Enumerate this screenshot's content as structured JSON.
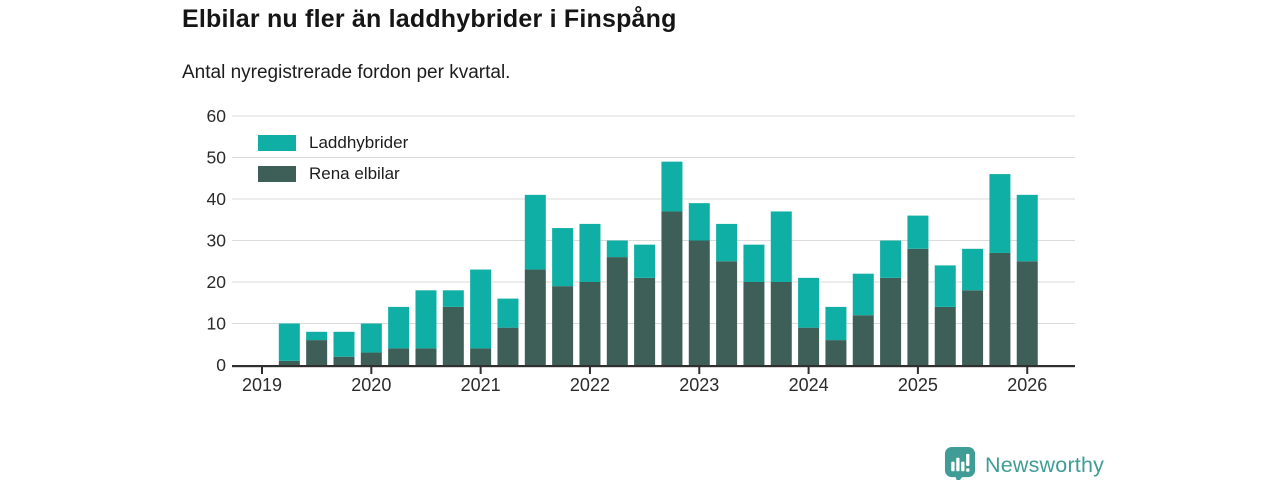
{
  "header": {
    "title": "Elbilar nu fler än laddhybrider i Finspång",
    "subtitle": "Antal nyregistrerade fordon per kvartal."
  },
  "legend": {
    "items": [
      {
        "label": "Laddhybrider",
        "color": "#0fafa5"
      },
      {
        "label": "Rena elbilar",
        "color": "#3e5f58"
      }
    ]
  },
  "footer": {
    "brand": "Newsworthy",
    "brand_color": "#3f9d96",
    "logo_icon": "newsworthy-chart-bubble-icon"
  },
  "chart_data": {
    "type": "bar",
    "stacked": true,
    "title": "Elbilar nu fler än laddhybrider i Finspång",
    "subtitle": "Antal nyregistrerade fordon per kvartal.",
    "categories": [
      "2019 Q2",
      "2019 Q3",
      "2019 Q4",
      "2020 Q1",
      "2020 Q2",
      "2020 Q3",
      "2020 Q4",
      "2021 Q1",
      "2021 Q2",
      "2021 Q3",
      "2021 Q4",
      "2022 Q1",
      "2022 Q2",
      "2022 Q3",
      "2022 Q4",
      "2023 Q1",
      "2023 Q2",
      "2023 Q3",
      "2023 Q4",
      "2024 Q1",
      "2024 Q2",
      "2024 Q3",
      "2024 Q4",
      "2025 Q1",
      "2025 Q2",
      "2025 Q3",
      "2025 Q4",
      "2026 Q1"
    ],
    "series": [
      {
        "name": "Rena elbilar",
        "color": "#3e5f58",
        "values": [
          1,
          6,
          2,
          3,
          4,
          4,
          14,
          4,
          9,
          23,
          19,
          20,
          26,
          21,
          37,
          30,
          25,
          20,
          20,
          9,
          6,
          12,
          21,
          28,
          14,
          18,
          27,
          25
        ]
      },
      {
        "name": "Laddhybrider",
        "color": "#0fafa5",
        "values": [
          9,
          2,
          6,
          7,
          10,
          14,
          4,
          19,
          7,
          18,
          14,
          14,
          4,
          8,
          12,
          9,
          9,
          9,
          17,
          12,
          8,
          10,
          9,
          8,
          10,
          10,
          19,
          16
        ]
      }
    ],
    "totals": [
      10,
      8,
      8,
      10,
      14,
      18,
      18,
      23,
      16,
      41,
      33,
      34,
      30,
      29,
      49,
      39,
      34,
      29,
      37,
      21,
      14,
      22,
      30,
      36,
      24,
      28,
      46,
      41
    ],
    "stack_order_bottom_to_top": [
      "Rena elbilar",
      "Laddhybrider"
    ],
    "x_tick_labels": [
      "2019",
      "2020",
      "2021",
      "2022",
      "2023",
      "2024",
      "2025",
      "2026"
    ],
    "xlabel": "",
    "ylabel": "",
    "yticks": [
      0,
      10,
      20,
      30,
      40,
      50,
      60
    ],
    "ylim": [
      0,
      60
    ],
    "grid": true,
    "legend_position": "top-left",
    "axis_color": "#2f2f2f",
    "grid_color": "#dbdbdb",
    "tick_label_color": "#2b2b2b"
  }
}
